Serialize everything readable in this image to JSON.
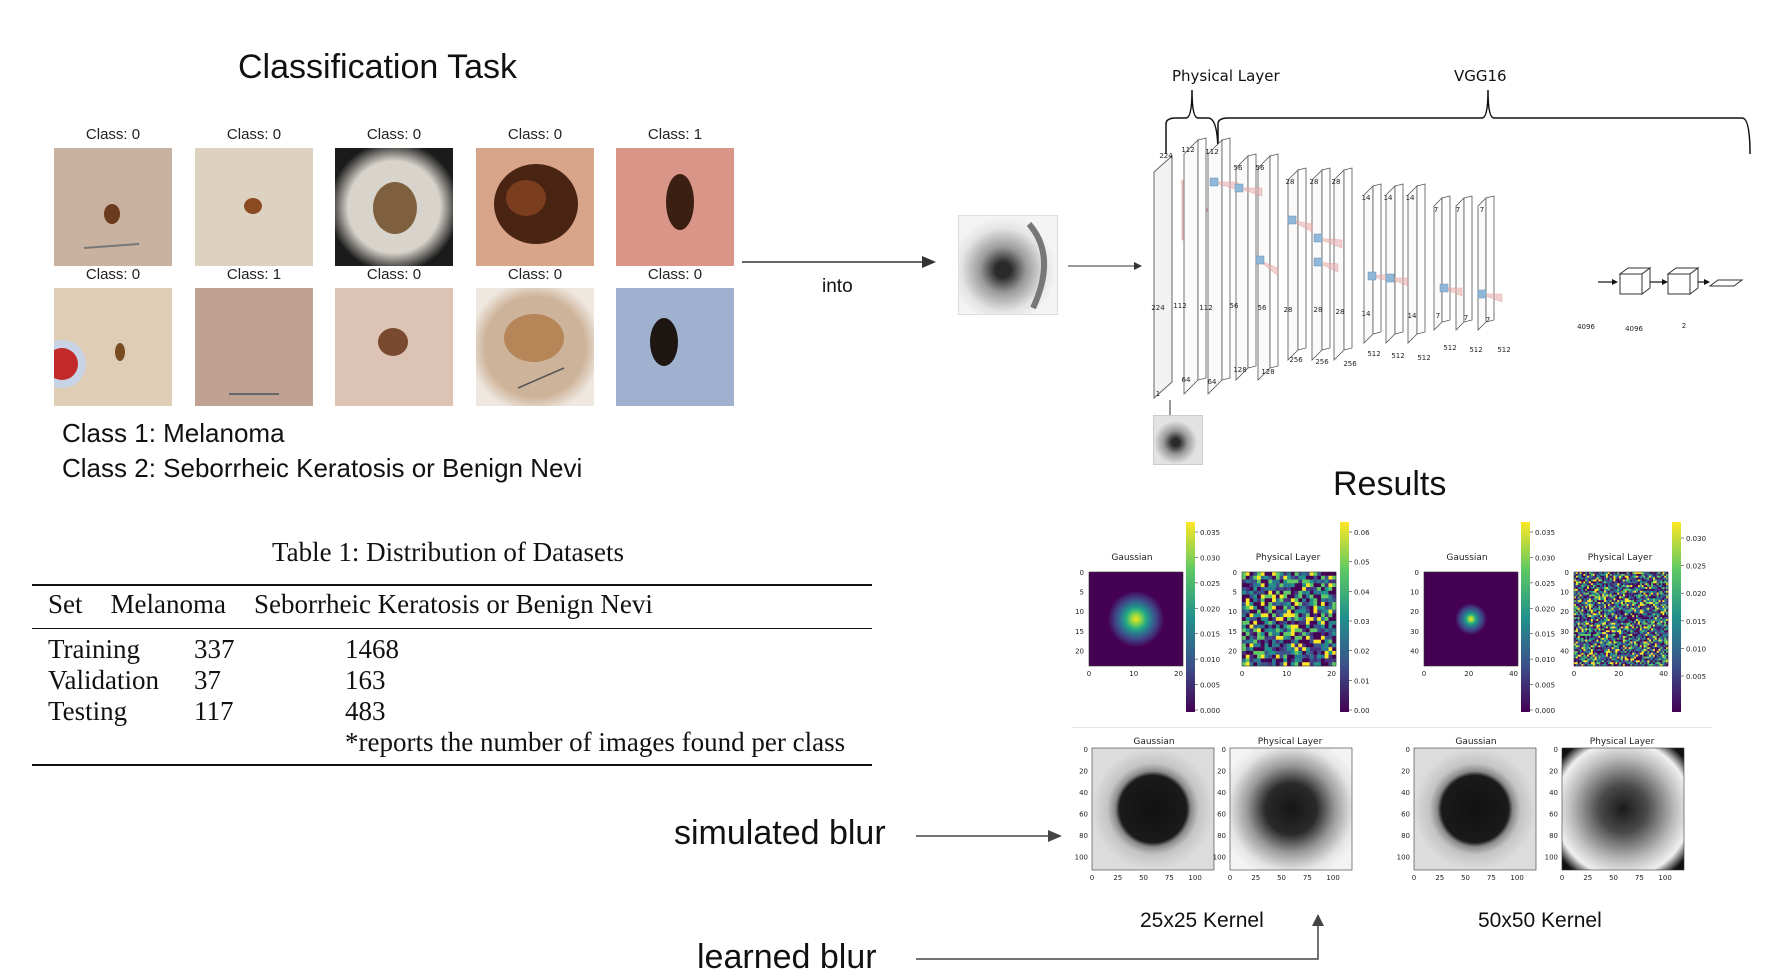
{
  "classification": {
    "title": "Classification Task",
    "row1": [
      "Class: 0",
      "Class: 0",
      "Class: 0",
      "Class: 0",
      "Class: 1"
    ],
    "row2": [
      "Class: 0",
      "Class: 1",
      "Class: 0",
      "Class: 0",
      "Class: 0"
    ],
    "legend_1": "Class 1: Melanoma",
    "legend_2": "Class 2: Seborrheic Keratosis or Benign Nevi"
  },
  "arrow_label": "into",
  "table": {
    "caption": "Table 1: Distribution of Datasets",
    "headers": [
      "Set",
      "Melanoma",
      "Seborrheic Keratosis or Benign Nevi"
    ],
    "rows": [
      [
        "Training",
        "337",
        "1468"
      ],
      [
        "Validation",
        "37",
        "163"
      ],
      [
        "Testing",
        "117",
        "483"
      ]
    ],
    "note": "*reports the number of images found per class"
  },
  "network": {
    "physical_label": "Physical Layer",
    "vgg_label": "VGG16",
    "dims_top": [
      "224",
      "112",
      "112",
      "56",
      "56",
      "28",
      "28",
      "28",
      "14",
      "14",
      "14",
      "7",
      "7",
      "7"
    ],
    "dims_side": [
      "224",
      "112",
      "112",
      "56",
      "56",
      "28",
      "28",
      "28",
      "14",
      "14",
      "7",
      "7",
      "7"
    ],
    "channels": [
      "1",
      "64",
      "64",
      "128",
      "128",
      "256",
      "256",
      "256",
      "512",
      "512",
      "512",
      "512",
      "512",
      "512",
      "4096",
      "4096",
      "2"
    ]
  },
  "results": {
    "title": "Results",
    "gaussian_label": "Gaussian",
    "physical_label": "Physical Layer",
    "colorbar_1": [
      "0.035",
      "0.030",
      "0.025",
      "0.020",
      "0.015",
      "0.010",
      "0.005",
      "0.000"
    ],
    "colorbar_2": [
      "0.06",
      "0.05",
      "0.04",
      "0.03",
      "0.02",
      "0.01",
      "0.00"
    ],
    "colorbar_3": [
      "0.035",
      "0.030",
      "0.025",
      "0.020",
      "0.015",
      "0.010",
      "0.005",
      "0.000"
    ],
    "colorbar_4": [
      "0.030",
      "0.025",
      "0.020",
      "0.015",
      "0.010",
      "0.005"
    ],
    "ticks_small": [
      "0",
      "5",
      "10",
      "15",
      "20"
    ],
    "ticks_small_x": [
      "0",
      "10",
      "20"
    ],
    "ticks_large": [
      "0",
      "10",
      "20",
      "30",
      "40"
    ],
    "ticks_large_x": [
      "0",
      "20",
      "40"
    ],
    "ticks_img_y": [
      "0",
      "20",
      "40",
      "60",
      "80",
      "100"
    ],
    "ticks_img_x": [
      "0",
      "25",
      "50",
      "75",
      "100"
    ],
    "kernel_1": "25x25 Kernel",
    "kernel_2": "50x50 Kernel",
    "simulated": "simulated blur",
    "learned": "learned blur"
  }
}
